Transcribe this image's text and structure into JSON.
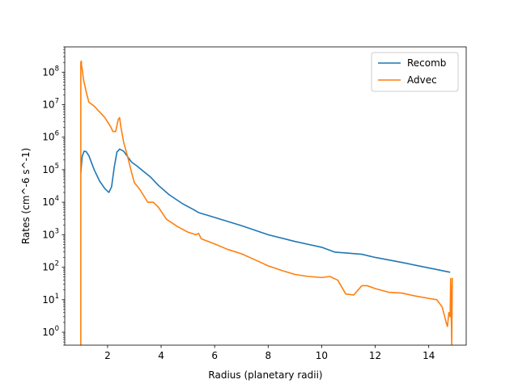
{
  "chart_data": {
    "type": "line",
    "title": "",
    "xlabel": "Radius (planetary radii)",
    "ylabel": "Rates (cm^-6 s^-1)",
    "xscale": "linear",
    "yscale": "log",
    "xlim": [
      0.4,
      15.4
    ],
    "ylim": [
      0.4,
      600000000
    ],
    "xticks": [
      2,
      4,
      6,
      8,
      10,
      12,
      14
    ],
    "yticks": [
      {
        "value": 1,
        "label": "10^0"
      },
      {
        "value": 10,
        "label": "10^1"
      },
      {
        "value": 100,
        "label": "10^2"
      },
      {
        "value": 1000,
        "label": "10^3"
      },
      {
        "value": 10000,
        "label": "10^4"
      },
      {
        "value": 100000,
        "label": "10^5"
      },
      {
        "value": 1000000,
        "label": "10^6"
      },
      {
        "value": 10000000,
        "label": "10^7"
      },
      {
        "value": 100000000,
        "label": "10^8"
      }
    ],
    "grid": false,
    "legend_position": "upper right",
    "series": [
      {
        "name": "Recomb",
        "color": "#1f77b4",
        "x": [
          1.0,
          1.05,
          1.12,
          1.2,
          1.3,
          1.5,
          1.7,
          1.9,
          2.05,
          2.15,
          2.25,
          2.35,
          2.45,
          2.6,
          2.75,
          2.9,
          3.1,
          3.3,
          3.6,
          3.9,
          4.3,
          4.8,
          5.2,
          5.4,
          6.0,
          7.0,
          8.0,
          9.0,
          10.0,
          10.5,
          11.0,
          11.5,
          12.0,
          13.0,
          14.0,
          14.8
        ],
        "y": [
          80000,
          250000,
          370000,
          360000,
          270000,
          100000,
          45000,
          26000,
          20000,
          30000,
          120000,
          350000,
          430000,
          370000,
          250000,
          170000,
          130000,
          95000,
          60000,
          33000,
          17000,
          9000,
          6000,
          4800,
          3400,
          1900,
          1000,
          620,
          410,
          290,
          270,
          250,
          200,
          140,
          95,
          70
        ]
      },
      {
        "name": "Advec",
        "color": "#ff7f0e",
        "x": [
          1.0,
          1.0,
          1.02,
          1.03,
          1.05,
          1.08,
          1.1,
          1.2,
          1.3,
          1.5,
          1.7,
          1.9,
          2.1,
          2.2,
          2.3,
          2.4,
          2.45,
          2.5,
          2.55,
          2.6,
          2.75,
          2.9,
          3.0,
          3.2,
          3.5,
          3.7,
          3.9,
          4.2,
          4.6,
          5.0,
          5.3,
          5.4,
          5.5,
          6.0,
          6.5,
          7.0,
          7.5,
          8.0,
          8.5,
          9.0,
          9.5,
          10.0,
          10.3,
          10.6,
          10.9,
          11.2,
          11.5,
          11.7,
          12.0,
          12.5,
          13.0,
          13.5,
          14.0,
          14.3,
          14.5,
          14.6,
          14.65,
          14.7,
          14.75,
          14.8,
          14.82,
          14.84,
          14.86,
          14.88
        ],
        "y": [
          0.4,
          200000000,
          220000000,
          150000000,
          130000000,
          80000000,
          60000000,
          25000000,
          12000000,
          9000000,
          6000000,
          4000000,
          2200000,
          1500000,
          1500000,
          3500000,
          4000000,
          2000000,
          1200000,
          700000,
          250000,
          80000,
          40000,
          25000,
          10000,
          10000,
          7000,
          3000,
          1800,
          1200,
          1000,
          1100,
          750,
          520,
          350,
          260,
          170,
          110,
          80,
          60,
          52,
          48,
          52,
          40,
          15,
          14,
          27,
          27,
          22,
          17,
          16,
          13,
          11,
          10,
          6,
          3,
          2,
          1.5,
          4,
          3,
          45,
          5,
          0.4,
          47
        ]
      }
    ]
  }
}
